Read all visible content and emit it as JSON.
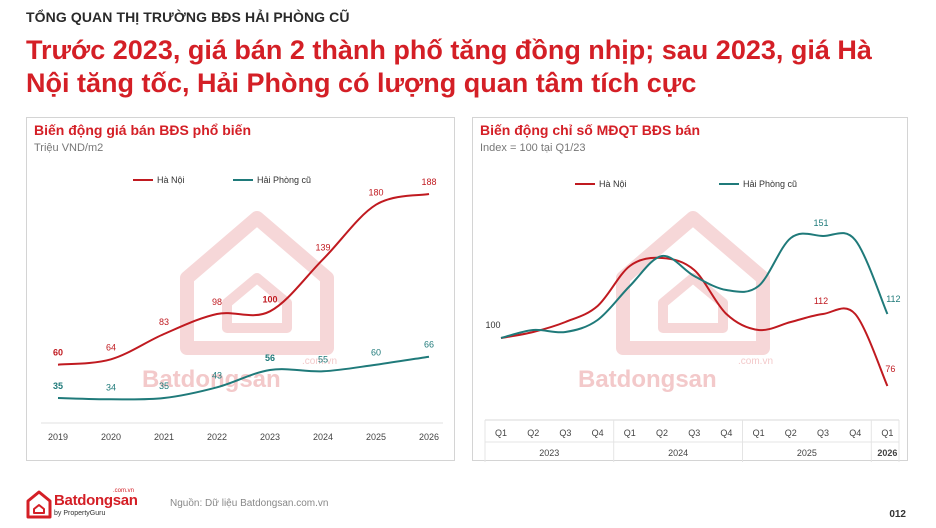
{
  "header": {
    "kicker": "TỔNG QUAN THỊ TRƯỜNG BĐS HẢI PHÒNG CŨ",
    "headline": "Trước 2023, giá bán 2 thành phố tăng đồng nhịp; sau 2023, giá Hà Nội tăng tốc, Hải Phòng có lượng quan tâm tích cực"
  },
  "colors": {
    "hanoi": "#c01a20",
    "haiphong": "#1f7a7a",
    "accent": "#d41f26"
  },
  "chart_data": [
    {
      "type": "line",
      "title": "Biến động giá bán BĐS phổ biến",
      "subtitle": "Triệu VND/m2",
      "x": [
        "2019",
        "2020",
        "2021",
        "2022",
        "2023",
        "2024",
        "2025",
        "2026"
      ],
      "series": [
        {
          "name": "Hà Nội",
          "values": [
            60,
            64,
            83,
            98,
            100,
            139,
            180,
            188
          ],
          "labels": [
            "60",
            "64",
            "83",
            "98",
            "100",
            "139",
            "180",
            "188"
          ]
        },
        {
          "name": "Hải Phòng cũ",
          "values": [
            35,
            34,
            35,
            43,
            56,
            55,
            60,
            66
          ],
          "labels": [
            "35",
            "34",
            "35",
            "43",
            "56",
            "55",
            "60",
            "66"
          ]
        }
      ],
      "ylim": [
        20,
        200
      ],
      "legend": "top",
      "grid": false
    },
    {
      "type": "line",
      "title": "Biến động chỉ số MĐQT BĐS bán",
      "subtitle": "Index = 100 tại Q1/23",
      "x": [
        "Q1",
        "Q2",
        "Q3",
        "Q4",
        "Q1",
        "Q2",
        "Q3",
        "Q4",
        "Q1",
        "Q2",
        "Q3",
        "Q4",
        "Q1"
      ],
      "groups": [
        {
          "label": "2023",
          "count": 4
        },
        {
          "label": "2024",
          "count": 4
        },
        {
          "label": "2025",
          "count": 4
        },
        {
          "label": "2026",
          "count": 1
        }
      ],
      "series": [
        {
          "name": "Hà Nội",
          "values": [
            100,
            103,
            108,
            116,
            136,
            140,
            134,
            112,
            104,
            108,
            112,
            112,
            76
          ]
        },
        {
          "name": "Hải Phòng cũ",
          "values": [
            100,
            104,
            103,
            109,
            126,
            141,
            131,
            124,
            126,
            150,
            151,
            149,
            112
          ]
        }
      ],
      "point_labels": [
        {
          "series": 0,
          "index": 0,
          "text": "100"
        },
        {
          "series": 1,
          "index": 10,
          "text": "151"
        },
        {
          "series": 1,
          "index": 12,
          "text": "112"
        },
        {
          "series": 0,
          "index": 10,
          "text": "112"
        },
        {
          "series": 0,
          "index": 12,
          "text": "76"
        }
      ],
      "ylim": [
        60,
        175
      ],
      "legend": "top",
      "grid": false
    }
  ],
  "footer": {
    "source": "Nguồn: Dữ liệu Batdongsan.com.vn",
    "page": "012",
    "logo_name": "Batdongsan",
    "logo_domain": ".com.vn",
    "logo_by": "by PropertyGuru"
  }
}
